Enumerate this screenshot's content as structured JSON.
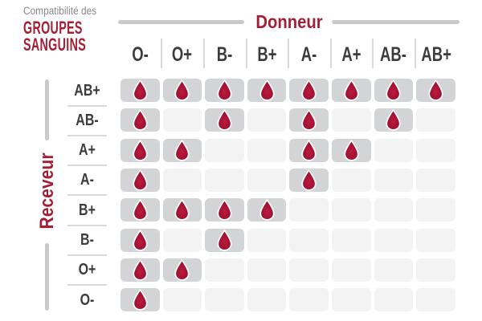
{
  "title": {
    "subtitle": "Compatibilité des",
    "main_line1": "GROUPES",
    "main_line2": "SANGUINS"
  },
  "axes": {
    "donor": "Donneur",
    "receiver": "Receveur"
  },
  "chart_data": {
    "type": "heatmap",
    "title": "Compatibilité des groupes sanguins",
    "x_label": "Donneur",
    "y_label": "Receveur",
    "columns": [
      "O-",
      "O+",
      "B-",
      "B+",
      "A-",
      "A+",
      "AB-",
      "AB+"
    ],
    "rows": [
      "AB+",
      "AB-",
      "A+",
      "A-",
      "B+",
      "B-",
      "O+",
      "O-"
    ],
    "values": [
      [
        1,
        1,
        1,
        1,
        1,
        1,
        1,
        1
      ],
      [
        1,
        0,
        1,
        0,
        1,
        0,
        1,
        0
      ],
      [
        1,
        1,
        0,
        0,
        1,
        1,
        0,
        0
      ],
      [
        1,
        0,
        0,
        0,
        1,
        0,
        0,
        0
      ],
      [
        1,
        1,
        1,
        1,
        0,
        0,
        0,
        0
      ],
      [
        1,
        0,
        1,
        0,
        0,
        0,
        0,
        0
      ],
      [
        1,
        1,
        0,
        0,
        0,
        0,
        0,
        0
      ],
      [
        1,
        0,
        0,
        0,
        0,
        0,
        0,
        0
      ]
    ],
    "marker_icon": "blood-drop-icon",
    "marker_meaning": "compatible"
  },
  "colors": {
    "accent_red": "#a41e35",
    "drop_red": "#a31133",
    "drop_red_dark": "#950d2b",
    "drop_red_light": "#b81c3e",
    "cell_compatible": "#d2d4d5",
    "cell_incompatible": "#f3f3f4",
    "separator_gray": "#d9dadb",
    "axis_line_gray": "#c8cacb",
    "label_dark": "#3c3c3d",
    "subtitle_gray": "#85888b"
  }
}
